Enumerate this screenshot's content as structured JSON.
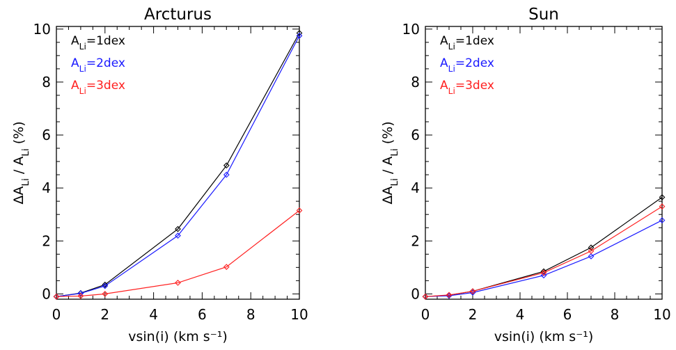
{
  "chart_data": [
    {
      "type": "line",
      "title": "Arcturus",
      "xlabel": "vsin(i) (km s⁻¹)",
      "ylabel": "ΔA_Li / A_Li (%)",
      "xlim": [
        0,
        10
      ],
      "ylim": [
        -0.2,
        10.1
      ],
      "xticks": [
        0,
        2,
        4,
        6,
        8,
        10
      ],
      "yticks": [
        0,
        2,
        4,
        6,
        8,
        10
      ],
      "marker": "diamond",
      "legend_position": "top-left",
      "series": [
        {
          "name": "A_Li=1dex",
          "color": "#000000",
          "x": [
            0,
            1,
            2,
            5,
            7,
            10
          ],
          "y": [
            -0.1,
            0.03,
            0.35,
            2.45,
            4.85,
            9.85
          ]
        },
        {
          "name": "A_Li=2dex",
          "color": "#1a1aff",
          "x": [
            0,
            1,
            2,
            5,
            7,
            10
          ],
          "y": [
            -0.1,
            0.02,
            0.3,
            2.2,
            4.5,
            9.75
          ]
        },
        {
          "name": "A_Li=3dex",
          "color": "#ff2020",
          "x": [
            0,
            1,
            2,
            5,
            7,
            10
          ],
          "y": [
            -0.1,
            -0.08,
            0.0,
            0.42,
            1.02,
            3.15
          ]
        }
      ]
    },
    {
      "type": "line",
      "title": "Sun",
      "xlabel": "vsin(i) (km s⁻¹)",
      "ylabel": "ΔA_Li / A_Li (%)",
      "xlim": [
        0,
        10
      ],
      "ylim": [
        -0.2,
        10.1
      ],
      "xticks": [
        0,
        2,
        4,
        6,
        8,
        10
      ],
      "yticks": [
        0,
        2,
        4,
        6,
        8,
        10
      ],
      "marker": "diamond",
      "legend_position": "top-left",
      "series": [
        {
          "name": "A_Li=1dex",
          "color": "#000000",
          "x": [
            0,
            1,
            2,
            5,
            7,
            10
          ],
          "y": [
            -0.1,
            -0.05,
            0.1,
            0.85,
            1.75,
            3.65
          ]
        },
        {
          "name": "A_Li=2dex",
          "color": "#1a1aff",
          "x": [
            0,
            1,
            2,
            5,
            7,
            10
          ],
          "y": [
            -0.1,
            -0.07,
            0.05,
            0.7,
            1.42,
            2.78
          ]
        },
        {
          "name": "A_Li=3dex",
          "color": "#ff2020",
          "x": [
            0,
            1,
            2,
            5,
            7,
            10
          ],
          "y": [
            -0.1,
            -0.04,
            0.1,
            0.8,
            1.62,
            3.3
          ]
        }
      ]
    }
  ]
}
